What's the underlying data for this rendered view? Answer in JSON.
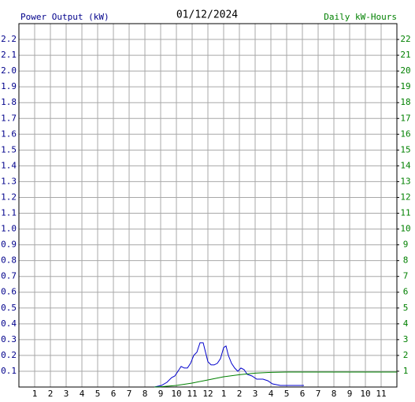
{
  "chart_data": {
    "type": "line",
    "title": "01/12/2024",
    "ylabel": "Power Output (kW)",
    "y2label": "Daily kW-Hours",
    "xlim": [
      0,
      24
    ],
    "xticks": [
      1,
      2,
      3,
      4,
      5,
      6,
      7,
      8,
      9,
      10,
      11,
      12,
      {
        "value": 13,
        "label": "1"
      },
      {
        "value": 14,
        "label": "2"
      },
      {
        "value": 15,
        "label": "3"
      },
      {
        "value": 16,
        "label": "4"
      },
      {
        "value": 17,
        "label": "5"
      },
      {
        "value": 18,
        "label": "6"
      },
      {
        "value": 19,
        "label": "7"
      },
      {
        "value": 20,
        "label": "8"
      },
      {
        "value": 21,
        "label": "9"
      },
      {
        "value": 22,
        "label": "10"
      },
      {
        "value": 23,
        "label": "11"
      }
    ],
    "ylim": [
      0,
      2.3
    ],
    "yticks": [
      0.1,
      0.2,
      0.3,
      0.4,
      0.5,
      0.6,
      0.7,
      0.8,
      0.9,
      {
        "value": 1,
        "label": "1.0"
      },
      1.1,
      1.2,
      1.3,
      1.4,
      1.5,
      1.6,
      1.7,
      1.8,
      1.9,
      {
        "value": 2,
        "label": "2.0"
      },
      2.1,
      2.2
    ],
    "y2lim": [
      0,
      23
    ],
    "y2ticks": [
      1,
      2,
      3,
      4,
      5,
      6,
      7,
      8,
      9,
      10,
      11,
      12,
      13,
      14,
      15,
      16,
      17,
      18,
      19,
      20,
      21,
      22
    ],
    "grid": true,
    "series": [
      {
        "color": "#0000cc",
        "x": [
          8.6,
          9.05,
          9.4,
          9.7,
          9.9,
          10.1,
          10.3,
          10.5,
          10.7,
          10.9,
          11.1,
          11.3,
          11.5,
          11.7,
          11.85,
          12,
          12.2,
          12.4,
          12.6,
          12.8,
          13,
          13.15,
          13.3,
          13.5,
          13.7,
          13.9,
          14.1,
          14.3,
          14.5,
          14.8,
          15.1,
          15.5,
          15.8,
          16.1,
          16.6,
          17.1,
          18.1
        ],
        "values": [
          0,
          0.01,
          0.03,
          0.06,
          0.07,
          0.1,
          0.13,
          0.12,
          0.12,
          0.15,
          0.2,
          0.22,
          0.28,
          0.28,
          0.22,
          0.16,
          0.14,
          0.14,
          0.15,
          0.18,
          0.25,
          0.26,
          0.2,
          0.15,
          0.12,
          0.1,
          0.12,
          0.11,
          0.08,
          0.07,
          0.05,
          0.05,
          0.04,
          0.02,
          0.01,
          0.01,
          0.01
        ]
      },
      {
        "color": "#008000",
        "axis": "y2",
        "x": [
          8.6,
          9,
          10,
          11,
          12,
          13,
          14,
          15,
          16,
          17,
          24
        ],
        "values": [
          0,
          0.02,
          0.1,
          0.25,
          0.45,
          0.65,
          0.78,
          0.88,
          0.93,
          0.95,
          0.95
        ]
      }
    ]
  }
}
